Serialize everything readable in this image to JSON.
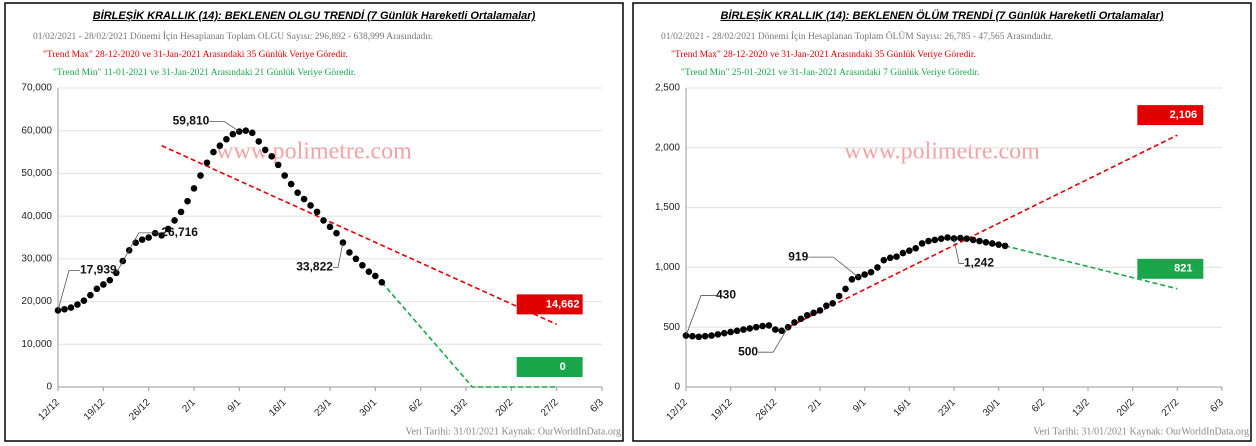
{
  "chart_data": [
    {
      "type": "line",
      "title": "BİRLEŞİK KRALLIK (14):  BEKLENEN OLGU TRENDİ (7 Günlük Hareketli Ortalamalar)",
      "notes": [
        "01/02/2021 - 28/02/2021 Dönemi İçin Hesaplanan Toplam OLGU Sayısı: 296,892 - 638,999 Arasındadır.",
        "\"Trend Max\" 28-12-2020 ve 31-Jan-2021 Arasındaki 35 Günlük Veriye Göredir.",
        "\"Trend Min\" 11-01-2021 ve 31-Jan-2021 Arasındaki 21 Günlük Veriye Göredir."
      ],
      "watermark": "www.polimetre.com",
      "source": "Veri Tarihi: 31/01/2021 Kaynak: OurWorldInData.org",
      "x": [
        0,
        1,
        2,
        3,
        4,
        5,
        6,
        7,
        8,
        9,
        10,
        11,
        12,
        13,
        14,
        15,
        16,
        17,
        18,
        19,
        20,
        21,
        22,
        23,
        24,
        25,
        26,
        27,
        28,
        29,
        30,
        31,
        32,
        33,
        34,
        35,
        36,
        37,
        38,
        39,
        40,
        41,
        42,
        43,
        44,
        45,
        46,
        47,
        48,
        49,
        50
      ],
      "series": [
        {
          "color": "#000000",
          "values": [
            17939,
            18200,
            18600,
            19300,
            20200,
            21500,
            23000,
            24000,
            25000,
            26716,
            29500,
            32000,
            33800,
            34500,
            35000,
            36000,
            35500,
            37000,
            39000,
            41000,
            43500,
            46500,
            49500,
            52500,
            55000,
            56500,
            58000,
            59200,
            59810,
            60000,
            59500,
            57500,
            55500,
            54000,
            52000,
            49500,
            47500,
            45500,
            44000,
            42500,
            41000,
            39000,
            37500,
            36000,
            33822,
            31500,
            30000,
            28500,
            27000,
            26000,
            24500
          ]
        }
      ],
      "annotations": [
        {
          "x": 0,
          "value": 17939,
          "label": "17,939"
        },
        {
          "x": 9,
          "value": 26716,
          "label": "26,716"
        },
        {
          "x": 28,
          "value": 59810,
          "label": "59,810"
        },
        {
          "x": 44,
          "value": 33822,
          "label": "33,822"
        }
      ],
      "trend_lines": [
        {
          "x": [
            16,
            77
          ],
          "values": [
            56500,
            14662
          ],
          "color": "#e00000",
          "label": "14,662"
        },
        {
          "x": [
            50,
            64,
            77
          ],
          "values": [
            24500,
            0,
            0
          ],
          "color": "#1aa64a",
          "label": "0"
        }
      ],
      "xlim": [
        0,
        84
      ],
      "xticks": [
        {
          "value": 0,
          "label": "12/12"
        },
        {
          "value": 7,
          "label": "19/12"
        },
        {
          "value": 14,
          "label": "26/12"
        },
        {
          "value": 21,
          "label": "2/1"
        },
        {
          "value": 28,
          "label": "9/1"
        },
        {
          "value": 35,
          "label": "16/1"
        },
        {
          "value": 42,
          "label": "23/1"
        },
        {
          "value": 49,
          "label": "30/1"
        },
        {
          "value": 56,
          "label": "6/2"
        },
        {
          "value": 63,
          "label": "13/2"
        },
        {
          "value": 70,
          "label": "20/2"
        },
        {
          "value": 77,
          "label": "27/2"
        },
        {
          "value": 84,
          "label": "6/3"
        }
      ],
      "ylim": [
        0,
        70000
      ],
      "yticks": [
        0,
        {
          "value": 10000,
          "label": "10,000"
        },
        {
          "value": 20000,
          "label": "20,000"
        },
        {
          "value": 30000,
          "label": "30,000"
        },
        {
          "value": 40000,
          "label": "40,000"
        },
        {
          "value": 50000,
          "label": "50,000"
        },
        {
          "value": 60000,
          "label": "60,000"
        },
        {
          "value": 70000,
          "label": "70,000"
        }
      ]
    },
    {
      "type": "line",
      "title": "BİRLEŞİK KRALLIK (14):  BEKLENEN ÖLÜM TRENDİ (7 Günlük Hareketli Ortalamalar)",
      "notes": [
        "01/02/2021 - 28/02/2021 Dönemi İçin Hesaplanan Toplam ÖLÜM Sayısı: 26,785 - 47,565 Arasındadır.",
        "\"Trend Max\" 28-12-2020 ve 31-Jan-2021 Arasındaki 35 Günlük Veriye Göredir.",
        "\"Trend Min\" 25-01-2021 ve 31-Jan-2021 Arasındaki 7 Günlük Veriye Göredir."
      ],
      "watermark": "www.polimetre.com",
      "source": "Veri Tarihi: 31/01/2021 Kaynak: OurWorldInData.org",
      "x": [
        0,
        1,
        2,
        3,
        4,
        5,
        6,
        7,
        8,
        9,
        10,
        11,
        12,
        13,
        14,
        15,
        16,
        17,
        18,
        19,
        20,
        21,
        22,
        23,
        24,
        25,
        26,
        27,
        28,
        29,
        30,
        31,
        32,
        33,
        34,
        35,
        36,
        37,
        38,
        39,
        40,
        41,
        42,
        43,
        44,
        45,
        46,
        47,
        48,
        49,
        50
      ],
      "series": [
        {
          "color": "#000000",
          "values": [
            430,
            425,
            420,
            425,
            430,
            440,
            450,
            460,
            470,
            480,
            490,
            500,
            510,
            515,
            480,
            470,
            500,
            540,
            570,
            600,
            620,
            640,
            680,
            700,
            760,
            820,
            900,
            919,
            940,
            960,
            1000,
            1060,
            1080,
            1090,
            1120,
            1140,
            1160,
            1200,
            1220,
            1230,
            1240,
            1250,
            1242,
            1245,
            1240,
            1230,
            1220,
            1210,
            1200,
            1190,
            1180
          ]
        }
      ],
      "annotations": [
        {
          "x": 0,
          "value": 430,
          "label": "430"
        },
        {
          "x": 16,
          "value": 500,
          "label": "500"
        },
        {
          "x": 27,
          "value": 919,
          "label": "919"
        },
        {
          "x": 42,
          "value": 1242,
          "label": "1,242"
        }
      ],
      "trend_lines": [
        {
          "x": [
            16,
            77
          ],
          "values": [
            500,
            2106
          ],
          "color": "#e00000",
          "label": "2,106"
        },
        {
          "x": [
            50,
            77
          ],
          "values": [
            1180,
            821
          ],
          "color": "#1aa64a",
          "label": "821"
        }
      ],
      "xlim": [
        0,
        84
      ],
      "xticks": [
        {
          "value": 0,
          "label": "12/12"
        },
        {
          "value": 7,
          "label": "19/12"
        },
        {
          "value": 14,
          "label": "26/12"
        },
        {
          "value": 21,
          "label": "2/1"
        },
        {
          "value": 28,
          "label": "9/1"
        },
        {
          "value": 35,
          "label": "16/1"
        },
        {
          "value": 42,
          "label": "23/1"
        },
        {
          "value": 49,
          "label": "30/1"
        },
        {
          "value": 56,
          "label": "6/2"
        },
        {
          "value": 63,
          "label": "13/2"
        },
        {
          "value": 70,
          "label": "20/2"
        },
        {
          "value": 77,
          "label": "27/2"
        },
        {
          "value": 84,
          "label": "6/3"
        }
      ],
      "ylim": [
        0,
        2500
      ],
      "yticks": [
        0,
        {
          "value": 500,
          "label": "500"
        },
        {
          "value": 1000,
          "label": "1,000"
        },
        {
          "value": 1500,
          "label": "1,500"
        },
        {
          "value": 2000,
          "label": "2,000"
        },
        {
          "value": 2500,
          "label": "2,500"
        }
      ]
    }
  ]
}
